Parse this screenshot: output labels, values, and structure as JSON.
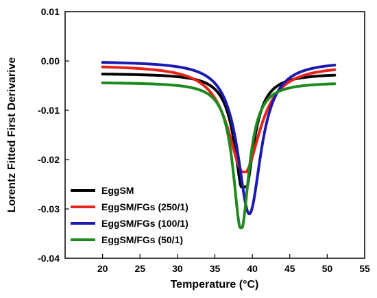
{
  "chart_data": {
    "type": "line",
    "title": "",
    "xlabel": "Temperature (°C)",
    "ylabel": "Lorentz Fitted First Derivarive",
    "xlim": [
      15,
      55
    ],
    "ylim": [
      -0.04,
      0.01
    ],
    "xticks": [
      20,
      25,
      30,
      35,
      40,
      45,
      50,
      55
    ],
    "yticks": [
      0.01,
      0.0,
      -0.01,
      -0.02,
      -0.03,
      -0.04
    ],
    "xtick_labels": [
      "20",
      "25",
      "30",
      "35",
      "40",
      "45",
      "50",
      "55"
    ],
    "ytick_labels": [
      "0.01",
      "0.00",
      "-0.01",
      "-0.02",
      "-0.03",
      "-0.04"
    ],
    "grid": false,
    "legend_position": "bottom-left",
    "series": [
      {
        "name": "EggSM",
        "color": "#000000",
        "x0": 38.9,
        "gamma": 1.5,
        "baseline": -0.0025,
        "depth": 0.025,
        "cap": -0.0255,
        "x": [
          20,
          22,
          24,
          26,
          28,
          30,
          32,
          33,
          34,
          35,
          36,
          37,
          38,
          38.5,
          39,
          39.5,
          40,
          41,
          42,
          43,
          44,
          45,
          46,
          48,
          50,
          51
        ],
        "y": [
          -0.0022,
          -0.0023,
          -0.0024,
          -0.0025,
          -0.0027,
          -0.0031,
          -0.0037,
          -0.0043,
          -0.0053,
          -0.0068,
          -0.0091,
          -0.0135,
          -0.0205,
          -0.0245,
          -0.0255,
          -0.0245,
          -0.0215,
          -0.0145,
          -0.0098,
          -0.007,
          -0.0054,
          -0.0044,
          -0.0038,
          -0.0032,
          -0.0029,
          -0.0027
        ]
      },
      {
        "name": "EggSM/FGs (250/1)",
        "color": "#e8231c",
        "x0": 38.9,
        "gamma": 2.6,
        "baseline": -0.0008,
        "depth": 0.022,
        "cap": -0.0225,
        "x": [
          20,
          22,
          24,
          26,
          28,
          30,
          32,
          33,
          34,
          35,
          36,
          37,
          38,
          38.5,
          39,
          39.5,
          40,
          41,
          42,
          43,
          44,
          45,
          46,
          48,
          50,
          51
        ],
        "y": [
          -0.0006,
          -0.0008,
          -0.0011,
          -0.0015,
          -0.0022,
          -0.0033,
          -0.0055,
          -0.0072,
          -0.0095,
          -0.0125,
          -0.0158,
          -0.0192,
          -0.0216,
          -0.0222,
          -0.0225,
          -0.0222,
          -0.0215,
          -0.019,
          -0.0158,
          -0.0122,
          -0.0092,
          -0.0068,
          -0.0052,
          -0.0032,
          -0.002,
          -0.0016
        ]
      },
      {
        "name": "EggSM/FGs (100/1)",
        "color": "#1c1ab0",
        "x0": 39.6,
        "gamma": 1.9,
        "baseline": 0.0,
        "depth": 0.031,
        "cap": -0.0312,
        "x": [
          20,
          22,
          24,
          26,
          28,
          30,
          32,
          33,
          34,
          35,
          36,
          37,
          38,
          38.5,
          39,
          39.5,
          40,
          40.5,
          41,
          42,
          43,
          44,
          45,
          46,
          48,
          50,
          51
        ],
        "y": [
          -0.0001,
          -0.0002,
          -0.0004,
          -0.0006,
          -0.001,
          -0.0018,
          -0.0032,
          -0.0045,
          -0.0063,
          -0.009,
          -0.013,
          -0.019,
          -0.0258,
          -0.0288,
          -0.0305,
          -0.0312,
          -0.0308,
          -0.0285,
          -0.025,
          -0.017,
          -0.011,
          -0.0072,
          -0.005,
          -0.0036,
          -0.002,
          -0.0013,
          -0.001
        ]
      },
      {
        "name": "EggSM/FGs (50/1)",
        "color": "#1e8a1e",
        "x0": 38.5,
        "gamma": 1.3,
        "baseline": -0.0043,
        "depth": 0.03,
        "cap": -0.0338,
        "x": [
          20,
          22,
          24,
          26,
          28,
          30,
          32,
          33,
          34,
          35,
          36,
          37,
          37.5,
          38,
          38.5,
          39,
          39.5,
          40,
          41,
          42,
          43,
          44,
          45,
          46,
          48,
          50,
          51
        ],
        "y": [
          -0.0043,
          -0.0043,
          -0.0044,
          -0.0045,
          -0.0046,
          -0.0048,
          -0.0053,
          -0.0058,
          -0.0068,
          -0.009,
          -0.014,
          -0.0245,
          -0.0298,
          -0.0328,
          -0.0338,
          -0.0328,
          -0.029,
          -0.023,
          -0.014,
          -0.0094,
          -0.0072,
          -0.006,
          -0.0054,
          -0.005,
          -0.0046,
          -0.0044,
          -0.0044
        ]
      }
    ]
  }
}
